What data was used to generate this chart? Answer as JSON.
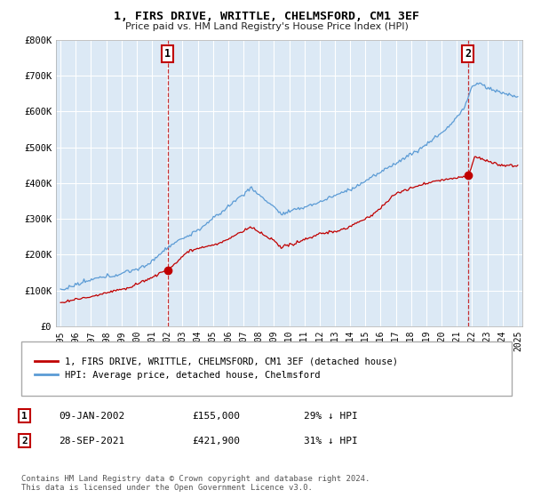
{
  "title": "1, FIRS DRIVE, WRITTLE, CHELMSFORD, CM1 3EF",
  "subtitle": "Price paid vs. HM Land Registry's House Price Index (HPI)",
  "legend_line1": "1, FIRS DRIVE, WRITTLE, CHELMSFORD, CM1 3EF (detached house)",
  "legend_line2": "HPI: Average price, detached house, Chelmsford",
  "annotation1_date": "09-JAN-2002",
  "annotation1_price": "£155,000",
  "annotation1_hpi": "29% ↓ HPI",
  "annotation2_date": "28-SEP-2021",
  "annotation2_price": "£421,900",
  "annotation2_hpi": "31% ↓ HPI",
  "footer": "Contains HM Land Registry data © Crown copyright and database right 2024.\nThis data is licensed under the Open Government Licence v3.0.",
  "hpi_color": "#5b9bd5",
  "price_color": "#c00000",
  "bg_color": "#dce9f5",
  "sale1_x": 2002.03,
  "sale1_y": 155000,
  "sale2_x": 2021.74,
  "sale2_y": 421900,
  "ylim": [
    0,
    800000
  ],
  "xlim": [
    1994.7,
    2025.3
  ],
  "yticks": [
    0,
    100000,
    200000,
    300000,
    400000,
    500000,
    600000,
    700000,
    800000
  ],
  "ytick_labels": [
    "£0",
    "£100K",
    "£200K",
    "£300K",
    "£400K",
    "£500K",
    "£600K",
    "£700K",
    "£800K"
  ],
  "xticks": [
    1995,
    1996,
    1997,
    1998,
    1999,
    2000,
    2001,
    2002,
    2003,
    2004,
    2005,
    2006,
    2007,
    2008,
    2009,
    2010,
    2011,
    2012,
    2013,
    2014,
    2015,
    2016,
    2017,
    2018,
    2019,
    2020,
    2021,
    2022,
    2023,
    2024,
    2025
  ]
}
